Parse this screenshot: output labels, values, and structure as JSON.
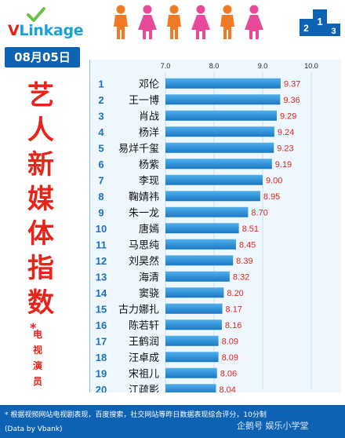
{
  "header": {
    "logo_text": "VLinkage",
    "date": "08月05日"
  },
  "sidebar": {
    "title_chars": [
      "艺",
      "人",
      "新",
      "媒",
      "体",
      "指",
      "数"
    ],
    "star": "*",
    "subtitle_chars": [
      "电",
      "视",
      "演",
      "员"
    ]
  },
  "footer": {
    "note": "* 根据视频网站电视剧表现，百度搜索，社交网站等昨日数据表现综合评分，10分制",
    "credit": "(Data by Vbank)",
    "watermark": "企鹅号 娱乐小学堂"
  },
  "colors": {
    "bar_top": "#4fb0ec",
    "bar_bottom": "#1b78c4",
    "value_text": "#e8231a",
    "rank_text": "#1b6fc0",
    "name_text": "#111111",
    "badge_bg": "#0d62b3",
    "figure_orange": "#f07a24",
    "figure_pink": "#e84a9a"
  },
  "chart_data": {
    "type": "bar",
    "orientation": "horizontal",
    "xlim": [
      7.0,
      10.0
    ],
    "x_ticks": [
      7.0,
      8.0,
      9.0,
      10.0
    ],
    "x_tick_labels": [
      "7.0",
      "8.0",
      "9.0",
      "10.0"
    ],
    "grid": true,
    "ranks": [
      "1",
      "2",
      "3",
      "4",
      "5",
      "6",
      "7",
      "8",
      "9",
      "10",
      "11",
      "12",
      "13",
      "14",
      "15",
      "16",
      "17",
      "18",
      "19",
      "20"
    ],
    "categories": [
      "邓伦",
      "王一博",
      "肖战",
      "杨洋",
      "易烊千玺",
      "杨紫",
      "李现",
      "鞠婧祎",
      "朱一龙",
      "唐嫣",
      "马思纯",
      "刘昊然",
      "海清",
      "窦骁",
      "古力娜扎",
      "陈若轩",
      "王鹤润",
      "汪卓成",
      "宋祖儿",
      "江疏影"
    ],
    "values": [
      9.37,
      9.36,
      9.29,
      9.24,
      9.23,
      9.19,
      9.0,
      8.95,
      8.7,
      8.51,
      8.45,
      8.39,
      8.32,
      8.2,
      8.17,
      8.16,
      8.09,
      8.09,
      8.06,
      8.04
    ],
    "value_labels": [
      "9.37",
      "9.36",
      "9.29",
      "9.24",
      "9.23",
      "9.19",
      "9.00",
      "8.95",
      "8.70",
      "8.51",
      "8.45",
      "8.39",
      "8.32",
      "8.20",
      "8.17",
      "8.16",
      "8.09",
      "8.09",
      "8.06",
      "8.04"
    ]
  }
}
